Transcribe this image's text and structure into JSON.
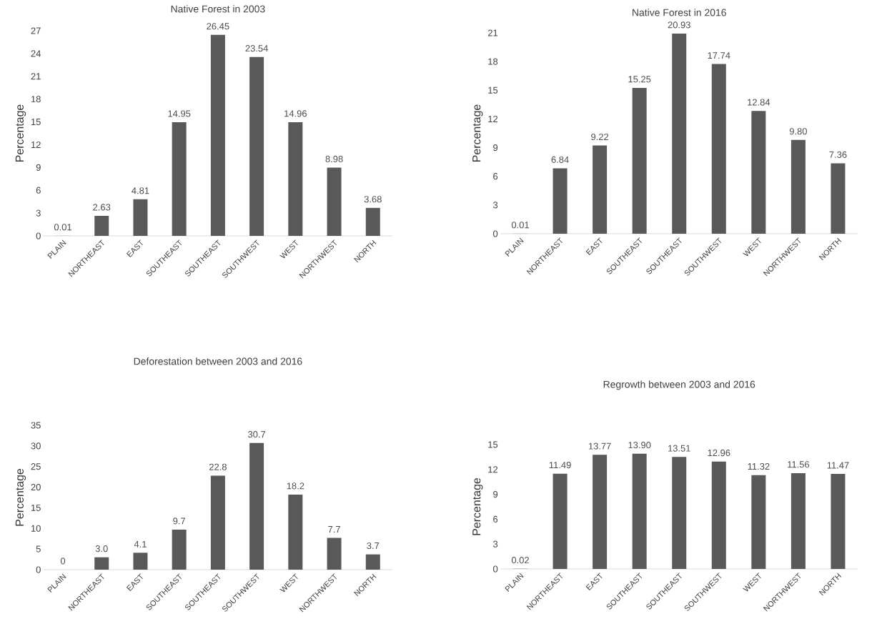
{
  "chart_data": [
    {
      "type": "bar",
      "title": "Native Forest in 2003",
      "ylabel": "Percentage",
      "categories": [
        "PLAIN",
        "NORTHEAST",
        "EAST",
        "SOUTHEAST",
        "SOUTHEAST",
        "SOUTHWEST",
        "WEST",
        "NORTHWEST",
        "NORTH"
      ],
      "values": [
        0.01,
        2.63,
        4.81,
        14.95,
        26.45,
        23.54,
        14.96,
        8.98,
        3.68
      ],
      "value_labels": [
        "0.01",
        "2.63",
        "4.81",
        "14.95",
        "26.45",
        "23.54",
        "14.96",
        "8.98",
        "3.68"
      ],
      "color": "#595959",
      "ylim": [
        0,
        27
      ],
      "yticks": [
        0,
        3,
        6,
        9,
        12,
        15,
        18,
        21,
        24,
        27
      ],
      "grid": false
    },
    {
      "type": "bar",
      "title": "Native Forest in 2016",
      "ylabel": "Percentage",
      "categories": [
        "PLAIN",
        "NORTHEAST",
        "EAST",
        "SOUTHEAST",
        "SOUTHEAST",
        "SOUTHWEST",
        "WEST",
        "NORTHWEST",
        "NORTH"
      ],
      "values": [
        0.01,
        6.84,
        9.22,
        15.25,
        20.93,
        17.74,
        12.84,
        9.8,
        7.36
      ],
      "value_labels": [
        "0.01",
        "6.84",
        "9.22",
        "15.25",
        "20.93",
        "17.74",
        "12.84",
        "9.80",
        "7.36"
      ],
      "color": "#595959",
      "ylim": [
        0,
        21
      ],
      "yticks": [
        0,
        3,
        6,
        9,
        12,
        15,
        18,
        21
      ],
      "grid": false
    },
    {
      "type": "bar",
      "title": "Deforestation between 2003 and 2016",
      "ylabel": "Percentage",
      "categories": [
        "PLAIN",
        "NORTHEAST",
        "EAST",
        "SOUTHEAST",
        "SOUTHEAST",
        "SOUTHWEST",
        "WEST",
        "NORTHWEST",
        "NORTH"
      ],
      "values": [
        0,
        3.0,
        4.1,
        9.7,
        22.8,
        30.7,
        18.2,
        7.7,
        3.7
      ],
      "value_labels": [
        "0",
        "3.0",
        "4.1",
        "9.7",
        "22.8",
        "30.7",
        "18.2",
        "7.7",
        "3.7"
      ],
      "color": "#595959",
      "ylim": [
        0,
        35
      ],
      "yticks": [
        0,
        5,
        10,
        15,
        20,
        25,
        30,
        35
      ],
      "grid": false
    },
    {
      "type": "bar",
      "title": "Regrowth between 2003 and 2016",
      "ylabel": "Percentage",
      "categories": [
        "PLAIN",
        "NORTHEAST",
        "EAST",
        "SOUTHEAST",
        "SOUTHEAST",
        "SOUTHWEST",
        "WEST",
        "NORTHWEST",
        "NORTH"
      ],
      "values": [
        0.02,
        11.49,
        13.77,
        13.9,
        13.51,
        12.96,
        11.32,
        11.56,
        11.47
      ],
      "value_labels": [
        "0.02",
        "11.49",
        "13.77",
        "13.90",
        "13.51",
        "12.96",
        "11.32",
        "11.56",
        "11.47"
      ],
      "color": "#595959",
      "ylim": [
        0,
        15
      ],
      "yticks": [
        0,
        3,
        6,
        9,
        12,
        15
      ],
      "grid": false
    }
  ]
}
